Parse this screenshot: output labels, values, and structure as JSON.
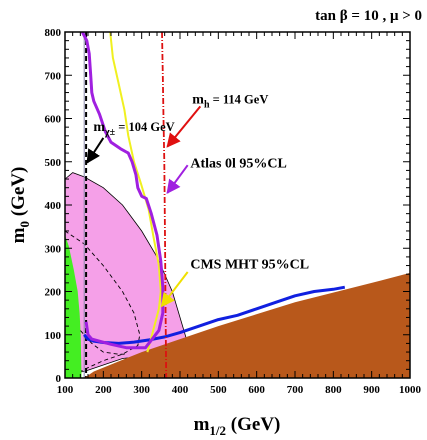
{
  "chart_data": {
    "type": "area",
    "header": "tan β = 10 ,  μ > 0",
    "x": {
      "label_main": "m",
      "label_sub": "1/2",
      "label_rest": " (GeV)",
      "min": 100,
      "max": 1000,
      "ticks": [
        100,
        200,
        300,
        400,
        500,
        600,
        700,
        800,
        900,
        1000
      ],
      "minor_step": 20
    },
    "y": {
      "label_main": "m",
      "label_sub": "0",
      "label_rest": " (GeV)",
      "min": 0,
      "max": 800,
      "ticks": [
        0,
        100,
        200,
        300,
        400,
        500,
        600,
        700,
        800
      ],
      "minor_step": 20
    },
    "colors": {
      "stau_lsp": "#b8581b",
      "bsg": "#44ee22",
      "gmuon": "#f5a0e8",
      "relic": "#1020e0",
      "atlas": "#a020e0",
      "cms": "#f0f020",
      "higgs": "#dd1111",
      "chargino": "#000000",
      "cms_arrow": "#f0e000",
      "higgs_arrow": "#e01010"
    },
    "regions": {
      "stau_lsp": [
        [
          150,
          0
        ],
        [
          175,
          15
        ],
        [
          300,
          60
        ],
        [
          500,
          120
        ],
        [
          700,
          175
        ],
        [
          900,
          220
        ],
        [
          1000,
          243
        ],
        [
          1000,
          0
        ]
      ],
      "bsg": [
        [
          100,
          0
        ],
        [
          100,
          330
        ],
        [
          110,
          305
        ],
        [
          123,
          250
        ],
        [
          133,
          200
        ],
        [
          138,
          150
        ],
        [
          141,
          100
        ],
        [
          142,
          50
        ],
        [
          143,
          0
        ]
      ],
      "gmuon_outer": [
        [
          100,
          460
        ],
        [
          120,
          475
        ],
        [
          150,
          465
        ],
        [
          200,
          440
        ],
        [
          250,
          400
        ],
        [
          300,
          340
        ],
        [
          340,
          280
        ],
        [
          380,
          200
        ],
        [
          400,
          140
        ],
        [
          420,
          80
        ],
        [
          425,
          60
        ],
        [
          380,
          55
        ],
        [
          300,
          50
        ],
        [
          250,
          45
        ],
        [
          200,
          30
        ],
        [
          150,
          15
        ],
        [
          100,
          10
        ]
      ],
      "gmuon_inner": [
        [
          100,
          330
        ],
        [
          130,
          300
        ],
        [
          170,
          260
        ],
        [
          210,
          220
        ],
        [
          250,
          185
        ],
        [
          280,
          155
        ],
        [
          300,
          120
        ],
        [
          310,
          80
        ],
        [
          300,
          60
        ],
        [
          250,
          55
        ],
        [
          200,
          40
        ],
        [
          150,
          20
        ],
        [
          100,
          15
        ]
      ]
    },
    "lines": {
      "relic": [
        [
          150,
          100
        ],
        [
          160,
          90
        ],
        [
          175,
          85
        ],
        [
          200,
          82
        ],
        [
          240,
          80
        ],
        [
          280,
          83
        ],
        [
          320,
          88
        ],
        [
          360,
          95
        ],
        [
          400,
          105
        ],
        [
          450,
          120
        ],
        [
          500,
          135
        ],
        [
          550,
          145
        ],
        [
          600,
          160
        ],
        [
          650,
          175
        ],
        [
          700,
          190
        ],
        [
          750,
          200
        ],
        [
          800,
          205
        ],
        [
          830,
          210
        ]
      ],
      "atlas": [
        [
          145,
          800
        ],
        [
          157,
          780
        ],
        [
          163,
          750
        ],
        [
          167,
          700
        ],
        [
          170,
          660
        ],
        [
          175,
          640
        ],
        [
          190,
          610
        ],
        [
          205,
          570
        ],
        [
          220,
          545
        ],
        [
          245,
          530
        ],
        [
          265,
          520
        ],
        [
          275,
          500
        ],
        [
          285,
          470
        ],
        [
          290,
          440
        ],
        [
          300,
          420
        ],
        [
          312,
          415
        ],
        [
          325,
          380
        ],
        [
          340,
          330
        ],
        [
          350,
          270
        ],
        [
          355,
          210
        ],
        [
          355,
          150
        ],
        [
          345,
          110
        ],
        [
          310,
          70
        ],
        [
          260,
          70
        ],
        [
          220,
          78
        ],
        [
          190,
          85
        ],
        [
          170,
          90
        ],
        [
          160,
          100
        ],
        [
          155,
          130
        ]
      ],
      "cms": [
        [
          218,
          800
        ],
        [
          225,
          740
        ],
        [
          240,
          680
        ],
        [
          255,
          620
        ],
        [
          265,
          560
        ],
        [
          280,
          500
        ],
        [
          298,
          450
        ],
        [
          318,
          390
        ],
        [
          330,
          330
        ],
        [
          345,
          260
        ],
        [
          350,
          200
        ],
        [
          345,
          160
        ],
        [
          330,
          110
        ],
        [
          315,
          60
        ]
      ],
      "higgs": [
        [
          353,
          800
        ],
        [
          355,
          700
        ],
        [
          357,
          600
        ],
        [
          359,
          500
        ],
        [
          360,
          400
        ],
        [
          361,
          300
        ],
        [
          362,
          200
        ],
        [
          363,
          100
        ],
        [
          364,
          0
        ]
      ],
      "chargino": [
        [
          155,
          800
        ],
        [
          155,
          0
        ]
      ],
      "gray_thin": [
        [
          150,
          800
        ],
        [
          150,
          0
        ]
      ],
      "dashed_inner": [
        [
          100,
          340
        ],
        [
          150,
          310
        ],
        [
          200,
          260
        ],
        [
          250,
          200
        ],
        [
          280,
          150
        ],
        [
          295,
          100
        ],
        [
          290,
          75
        ],
        [
          250,
          55
        ],
        [
          200,
          40
        ],
        [
          150,
          20
        ],
        [
          110,
          0
        ]
      ],
      "dashed_outer": [
        [
          110,
          150
        ],
        [
          140,
          110
        ],
        [
          170,
          80
        ],
        [
          200,
          60
        ],
        [
          240,
          55
        ],
        [
          260,
          55
        ]
      ]
    },
    "annotations": [
      {
        "name": "higgs-label",
        "main": "m",
        "sub": "h",
        "rest": "  = 114 GeV",
        "at": [
          432,
          635
        ],
        "arrow_from": [
          453,
          628
        ],
        "arrow_to": [
          367,
          535
        ],
        "color_key": "higgs_arrow"
      },
      {
        "name": "chargino-label",
        "main": "m",
        "sub": "χ±",
        "rest": " = 104 GeV",
        "at": [
          174,
          571
        ],
        "arrow_from": [
          200,
          555
        ],
        "arrow_to": [
          158,
          498
        ],
        "color_key": "chargino"
      },
      {
        "name": "atlas-label",
        "main": "Atlas 0l 95%CL",
        "sub": "",
        "rest": "",
        "at": [
          427,
          487
        ],
        "arrow_from": [
          420,
          492
        ],
        "arrow_to": [
          367,
          428
        ],
        "color_key": "atlas"
      },
      {
        "name": "cms-label",
        "main": "CMS MHT 95%CL",
        "sub": "",
        "rest": "",
        "at": [
          427,
          253
        ],
        "arrow_from": [
          420,
          245
        ],
        "arrow_to": [
          352,
          166
        ],
        "color_key": "cms_arrow"
      }
    ]
  }
}
